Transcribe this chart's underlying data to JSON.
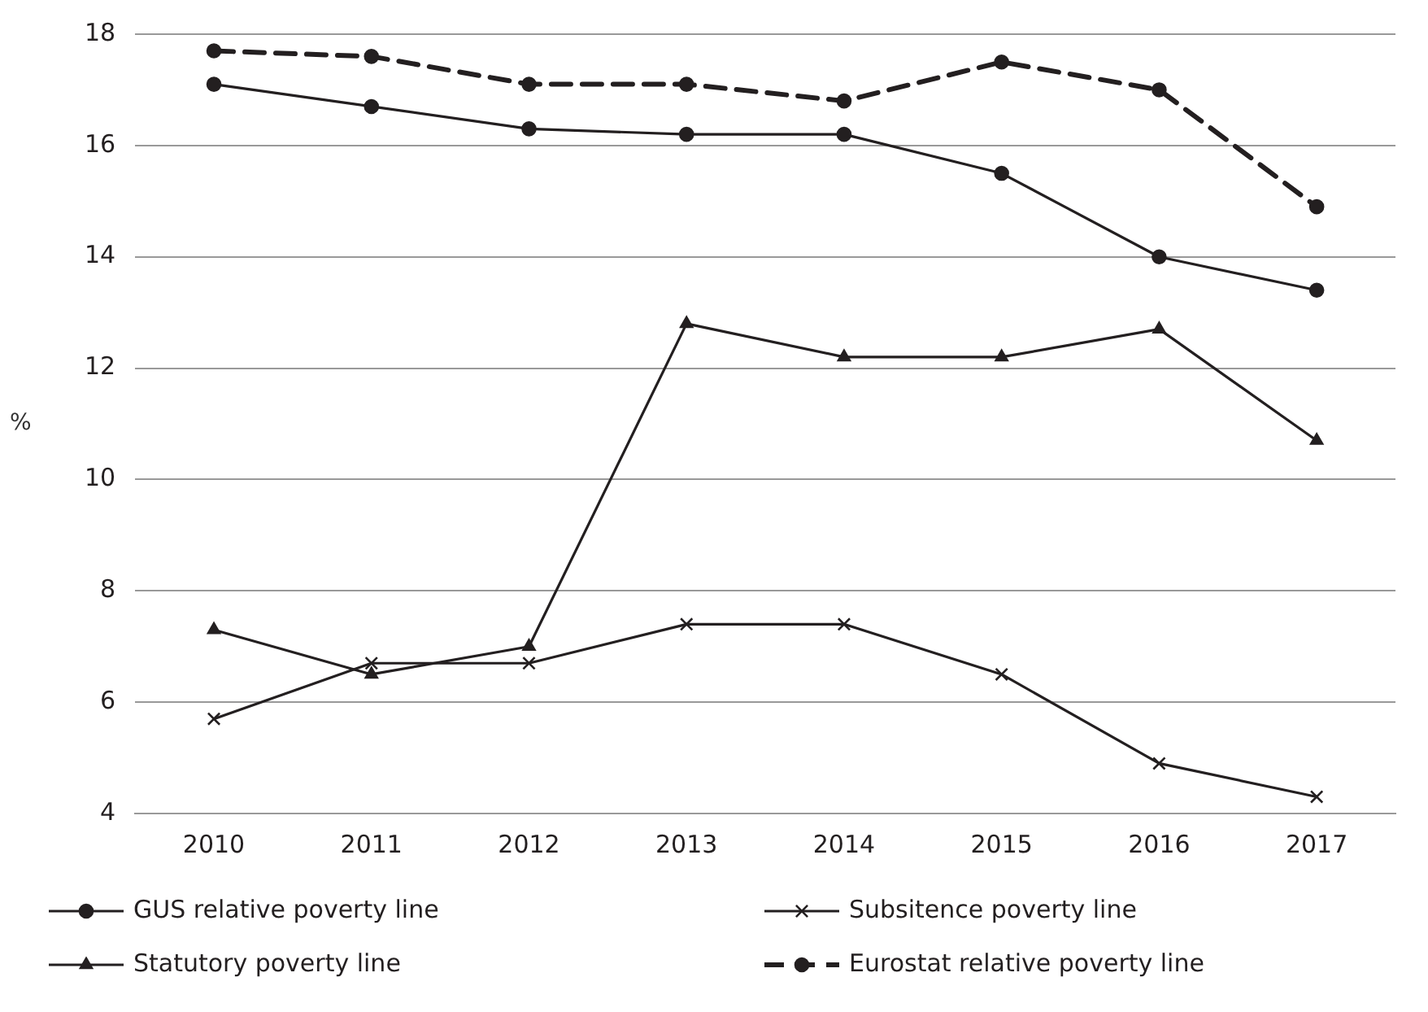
{
  "chart_data": {
    "type": "line",
    "ylabel": "%",
    "categories": [
      "2010",
      "2011",
      "2012",
      "2013",
      "2014",
      "2015",
      "2016",
      "2017"
    ],
    "series": [
      {
        "name": "GUS relative poverty line",
        "color": "#231f20",
        "marker": "circle",
        "line_style": "solid",
        "values": [
          17.1,
          16.7,
          16.3,
          16.2,
          16.2,
          15.5,
          14.0,
          13.4
        ]
      },
      {
        "name": "Subsitence poverty line",
        "color": "#231f20",
        "marker": "cross",
        "line_style": "solid",
        "values": [
          5.7,
          6.7,
          6.7,
          7.4,
          7.4,
          6.5,
          4.9,
          4.3
        ]
      },
      {
        "name": "Statutory poverty line",
        "color": "#231f20",
        "marker": "triangle",
        "line_style": "solid",
        "values": [
          7.3,
          6.5,
          7.0,
          12.8,
          12.2,
          12.2,
          12.7,
          10.7
        ]
      },
      {
        "name": "Eurostat relative poverty line",
        "color": "#231f20",
        "marker": "circle",
        "line_style": "dashed",
        "values": [
          17.7,
          17.6,
          17.1,
          17.1,
          16.8,
          17.5,
          17.0,
          14.9
        ]
      }
    ],
    "ylim": [
      4,
      18
    ],
    "yticks": [
      4,
      6,
      8,
      10,
      12,
      14,
      16,
      18
    ],
    "grid": "y",
    "legend": "bottom"
  }
}
